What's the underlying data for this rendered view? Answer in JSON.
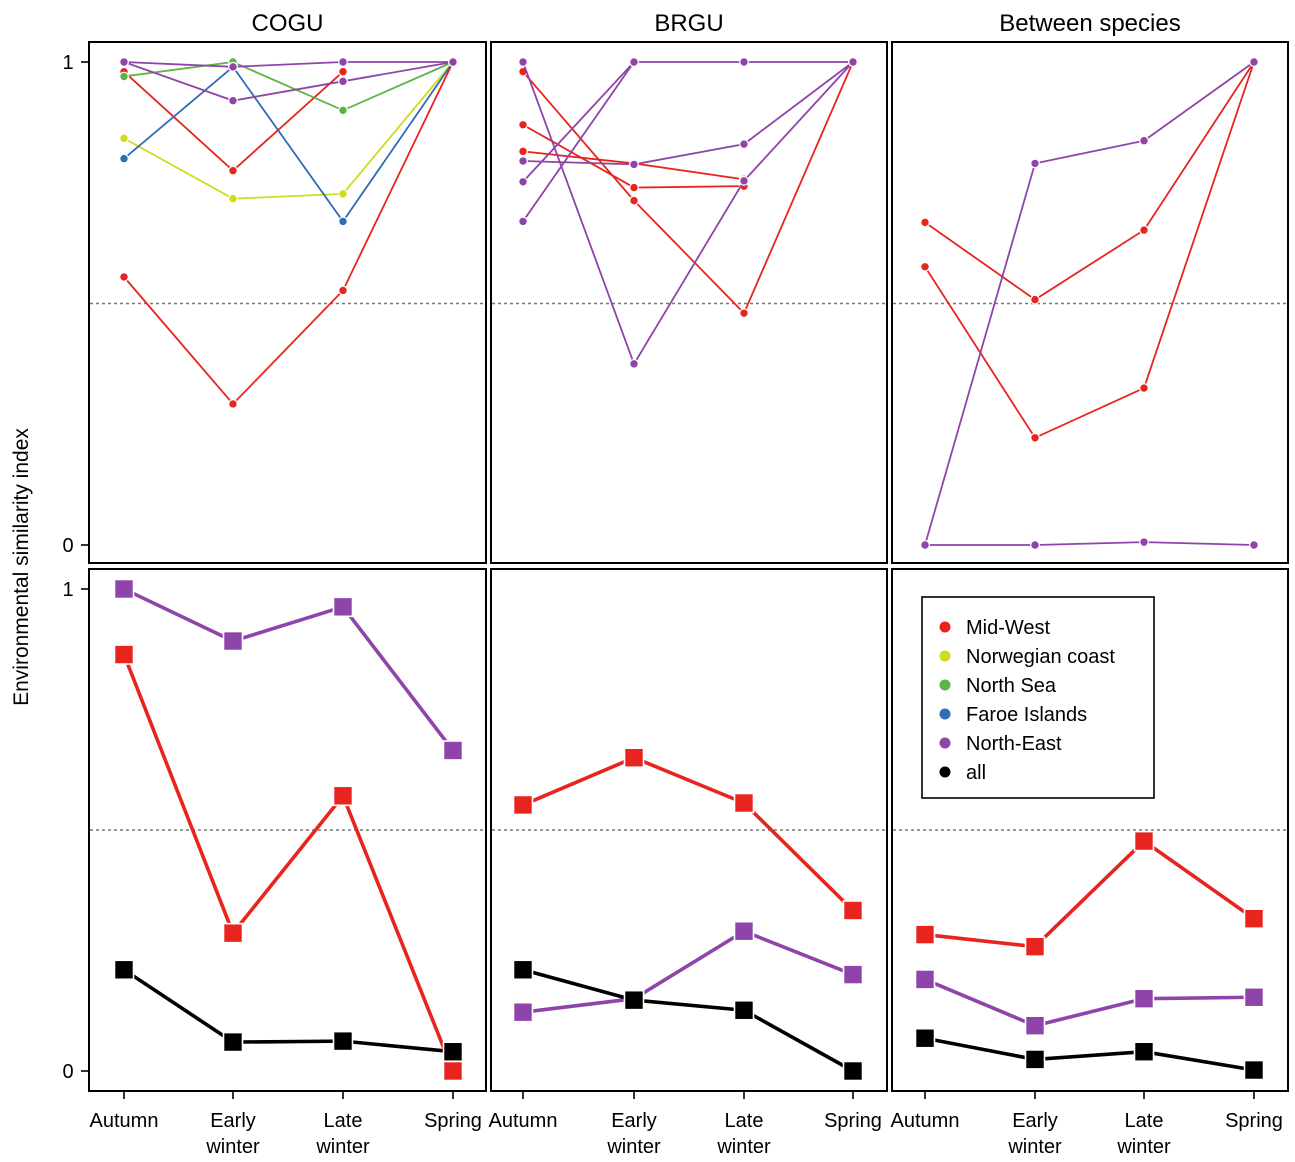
{
  "figure": {
    "ylabel": "Environmental similarity index",
    "x_ticks": [
      "Autumn",
      "Early|winter",
      "Late|winter",
      "Spring"
    ],
    "y_ticks": [
      "0",
      "1"
    ],
    "reference_line": 0.5
  },
  "legend": [
    {
      "label": "Mid-West",
      "color": "#e8241e"
    },
    {
      "label": "Norwegian coast",
      "color": "#cfdb1c"
    },
    {
      "label": "North Sea",
      "color": "#5cb346"
    },
    {
      "label": "Faroe Islands",
      "color": "#2f6db5"
    },
    {
      "label": "North-East",
      "color": "#8e44a8"
    },
    {
      "label": "all",
      "color": "#000000"
    }
  ],
  "chart_data": [
    {
      "type": "line",
      "title": "COGU",
      "row": 1,
      "col": 1,
      "categories": [
        "Autumn",
        "Early winter",
        "Late winter",
        "Spring"
      ],
      "ylim": [
        0,
        1
      ],
      "series": [
        {
          "group": "Mid-West",
          "values": [
            0.555,
            0.292,
            0.527,
            1.0
          ]
        },
        {
          "group": "Mid-West",
          "values": [
            0.98,
            0.775,
            0.98,
            null
          ]
        },
        {
          "group": "Norwegian coast",
          "values": [
            0.842,
            0.717,
            0.727,
            1.0
          ]
        },
        {
          "group": "North Sea",
          "values": [
            0.97,
            1.0,
            0.9,
            1.0
          ]
        },
        {
          "group": "Faroe Islands",
          "values": [
            0.8,
            0.99,
            0.67,
            1.0
          ]
        },
        {
          "group": "North-East",
          "values": [
            1.0,
            0.92,
            0.96,
            1.0
          ]
        },
        {
          "group": "North-East",
          "values": [
            1.0,
            0.99,
            1.0,
            1.0
          ]
        }
      ]
    },
    {
      "type": "line",
      "title": "BRGU",
      "row": 1,
      "col": 2,
      "categories": [
        "Autumn",
        "Early winter",
        "Late winter",
        "Spring"
      ],
      "ylim": [
        0,
        1
      ],
      "series": [
        {
          "group": "Mid-West",
          "values": [
            0.98,
            0.713,
            0.48,
            1.0
          ]
        },
        {
          "group": "Mid-West",
          "values": [
            0.87,
            0.74,
            0.743,
            null
          ]
        },
        {
          "group": "Mid-West",
          "values": [
            0.815,
            0.79,
            0.757,
            null
          ]
        },
        {
          "group": "North-East",
          "values": [
            1.0,
            0.375,
            0.754,
            1.0
          ]
        },
        {
          "group": "North-East",
          "values": [
            0.67,
            1.0,
            1.0,
            1.0
          ]
        },
        {
          "group": "North-East",
          "values": [
            0.795,
            0.788,
            0.83,
            1.0
          ]
        },
        {
          "group": "North-East",
          "values": [
            0.752,
            1.0,
            null,
            null
          ]
        }
      ]
    },
    {
      "type": "line",
      "title": "Between species",
      "row": 1,
      "col": 3,
      "categories": [
        "Autumn",
        "Early winter",
        "Late winter",
        "Spring"
      ],
      "ylim": [
        0,
        1
      ],
      "series": [
        {
          "group": "Mid-West",
          "values": [
            0.668,
            0.508,
            0.652,
            1.0
          ]
        },
        {
          "group": "Mid-West",
          "values": [
            0.576,
            0.222,
            0.325,
            1.0
          ]
        },
        {
          "group": "North-East",
          "values": [
            0.0,
            0.79,
            0.837,
            1.0
          ]
        },
        {
          "group": "North-East",
          "values": [
            0.0,
            0.0,
            0.006,
            0.0
          ]
        }
      ]
    },
    {
      "type": "line",
      "title": "",
      "row": 2,
      "col": 1,
      "categories": [
        "Autumn",
        "Early winter",
        "Late winter",
        "Spring"
      ],
      "ylim": [
        0,
        1
      ],
      "series": [
        {
          "group": "Mid-West",
          "values": [
            0.864,
            0.286,
            0.571,
            0.0
          ]
        },
        {
          "group": "North-East",
          "values": [
            1.0,
            0.892,
            0.963,
            0.665
          ]
        },
        {
          "group": "all",
          "values": [
            0.21,
            0.06,
            0.062,
            0.04
          ]
        }
      ]
    },
    {
      "type": "line",
      "title": "",
      "row": 2,
      "col": 2,
      "categories": [
        "Autumn",
        "Early winter",
        "Late winter",
        "Spring"
      ],
      "ylim": [
        0,
        1
      ],
      "series": [
        {
          "group": "Mid-West",
          "values": [
            0.552,
            0.65,
            0.556,
            0.333
          ]
        },
        {
          "group": "North-East",
          "values": [
            0.122,
            0.15,
            0.29,
            0.2
          ]
        },
        {
          "group": "all",
          "values": [
            0.21,
            0.147,
            0.126,
            0.0
          ]
        }
      ]
    },
    {
      "type": "line",
      "title": "",
      "row": 2,
      "col": 3,
      "categories": [
        "Autumn",
        "Early winter",
        "Late winter",
        "Spring"
      ],
      "ylim": [
        0,
        1
      ],
      "series": [
        {
          "group": "Mid-West",
          "values": [
            0.283,
            0.258,
            0.477,
            0.316
          ]
        },
        {
          "group": "North-East",
          "values": [
            0.19,
            0.094,
            0.15,
            0.153
          ]
        },
        {
          "group": "all",
          "values": [
            0.068,
            0.024,
            0.04,
            0.002
          ]
        }
      ]
    }
  ]
}
